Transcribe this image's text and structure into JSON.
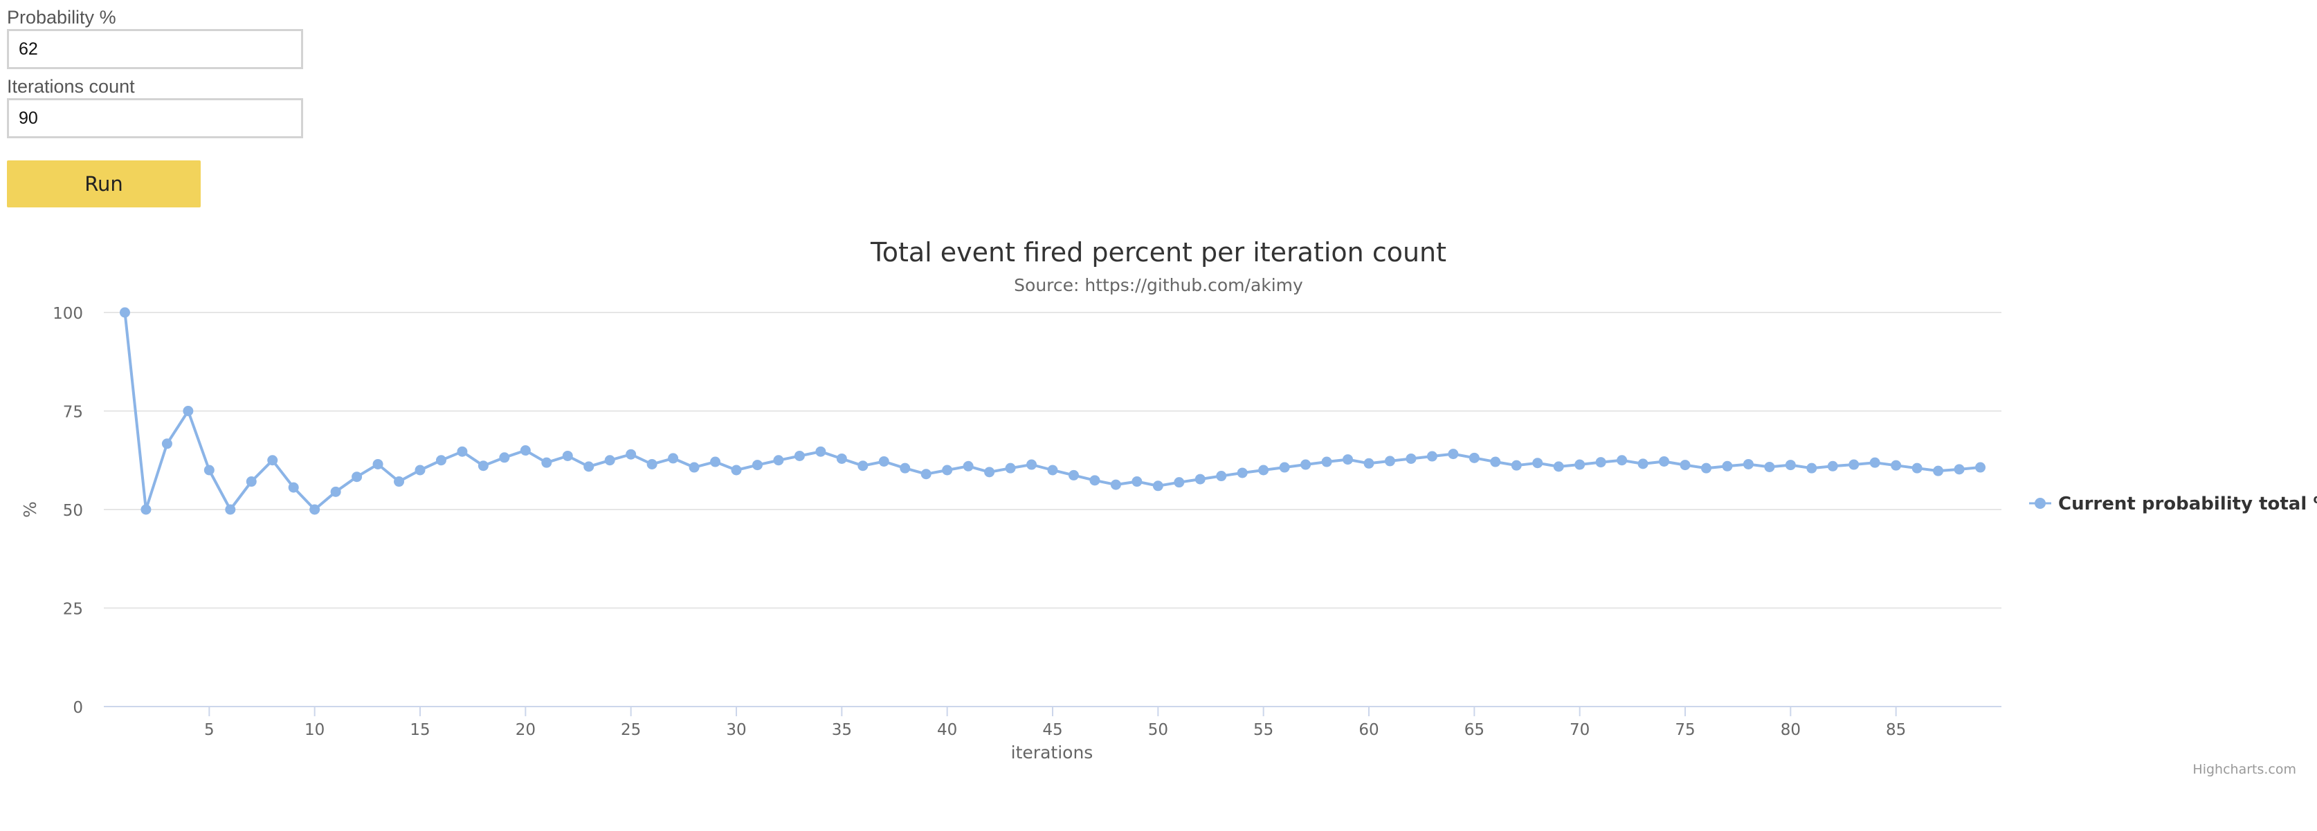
{
  "form": {
    "probability_label": "Probability %",
    "probability_value": "62",
    "iterations_label": "Iterations count",
    "iterations_value": "90",
    "run_label": "Run"
  },
  "credits": "Highcharts.com",
  "colors": {
    "series": "#8bb4e7",
    "grid": "#e6e6e6",
    "axis_line": "#ccd6eb",
    "button": "#f2d35b"
  },
  "chart_data": {
    "type": "line",
    "title": "Total event fired percent per iteration count",
    "subtitle": "Source: https://github.com/akimy",
    "xlabel": "iterations",
    "ylabel": "%",
    "xlim": [
      0,
      90
    ],
    "ylim": [
      0,
      100
    ],
    "x_ticks": [
      5,
      10,
      15,
      20,
      25,
      30,
      35,
      40,
      45,
      50,
      55,
      60,
      65,
      70,
      75,
      80,
      85
    ],
    "y_ticks": [
      0,
      25,
      50,
      75,
      100
    ],
    "grid": true,
    "legend_position": "right",
    "series": [
      {
        "name": "Current probability total %",
        "x": [
          1,
          2,
          3,
          4,
          5,
          6,
          7,
          8,
          9,
          10,
          11,
          12,
          13,
          14,
          15,
          16,
          17,
          18,
          19,
          20,
          21,
          22,
          23,
          24,
          25,
          26,
          27,
          28,
          29,
          30,
          31,
          32,
          33,
          34,
          35,
          36,
          37,
          38,
          39,
          40,
          41,
          42,
          43,
          44,
          45,
          46,
          47,
          48,
          49,
          50,
          51,
          52,
          53,
          54,
          55,
          56,
          57,
          58,
          59,
          60,
          61,
          62,
          63,
          64,
          65,
          66,
          67,
          68,
          69,
          70,
          71,
          72,
          73,
          74,
          75,
          76,
          77,
          78,
          79,
          80,
          81,
          82,
          83,
          84,
          85,
          86,
          87,
          88,
          89
        ],
        "values": [
          100,
          50,
          66.7,
          75,
          60,
          50,
          57.1,
          62.5,
          55.6,
          50,
          54.5,
          58.3,
          61.5,
          57.1,
          60,
          62.5,
          64.7,
          61.1,
          63.2,
          65,
          61.9,
          63.6,
          60.9,
          62.5,
          64,
          61.5,
          63,
          60.7,
          62.1,
          60,
          61.3,
          62.5,
          63.6,
          64.7,
          62.9,
          61.1,
          62.2,
          60.5,
          59,
          60,
          61,
          59.5,
          60.5,
          61.4,
          60,
          58.7,
          57.4,
          56.3,
          57.1,
          56,
          56.9,
          57.7,
          58.5,
          59.3,
          60,
          60.7,
          61.4,
          62.1,
          62.7,
          61.7,
          62.3,
          62.9,
          63.5,
          64.1,
          63.1,
          62.1,
          61.2,
          61.8,
          60.9,
          61.4,
          62,
          62.5,
          61.6,
          62.2,
          61.3,
          60.5,
          61,
          61.5,
          60.8,
          61.3,
          60.5,
          61,
          61.4,
          61.9,
          61.2,
          60.5,
          59.8,
          60.2,
          60.7
        ]
      }
    ]
  }
}
